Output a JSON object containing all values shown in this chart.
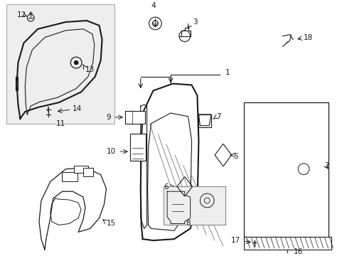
{
  "bg_color": "#ffffff",
  "line_color": "#1a1a1a",
  "figsize": [
    4.89,
    3.6
  ],
  "dpi": 100,
  "label_fontsize": 7.5
}
